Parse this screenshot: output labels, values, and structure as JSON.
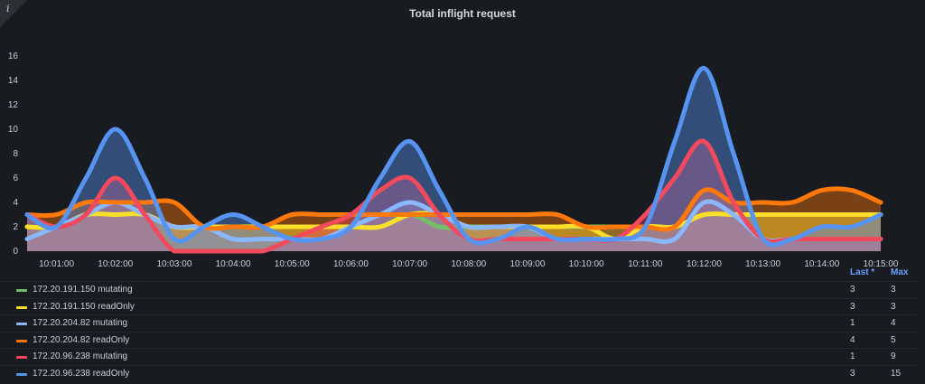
{
  "panel": {
    "title": "Total inflight request",
    "info_icon": "info-icon",
    "info_glyph": "i"
  },
  "legend": {
    "col_last": "Last *",
    "col_max": "Max",
    "rows": [
      {
        "name": "172.20.191.150 mutating",
        "last": "3",
        "max": "3",
        "color": "#73bf69"
      },
      {
        "name": "172.20.191.150 readOnly",
        "last": "3",
        "max": "3",
        "color": "#fade2a"
      },
      {
        "name": "172.20.204.82 mutating",
        "last": "1",
        "max": "4",
        "color": "#8ab8ff"
      },
      {
        "name": "172.20.204.82 readOnly",
        "last": "4",
        "max": "5",
        "color": "#ff780a"
      },
      {
        "name": "172.20.96.238 mutating",
        "last": "1",
        "max": "9",
        "color": "#f2495c"
      },
      {
        "name": "172.20.96.238 readOnly",
        "last": "3",
        "max": "15",
        "color": "#5794f2"
      }
    ]
  },
  "chart_data": {
    "type": "area",
    "title": "Total inflight request",
    "x": [
      "10:00:30",
      "10:01:00",
      "10:01:30",
      "10:02:00",
      "10:02:30",
      "10:03:00",
      "10:03:30",
      "10:04:00",
      "10:04:30",
      "10:05:00",
      "10:05:30",
      "10:06:00",
      "10:06:30",
      "10:07:00",
      "10:07:30",
      "10:08:00",
      "10:08:30",
      "10:09:00",
      "10:09:30",
      "10:10:00",
      "10:10:30",
      "10:11:00",
      "10:11:30",
      "10:12:00",
      "10:12:30",
      "10:13:00",
      "10:13:30",
      "10:14:00",
      "10:14:30",
      "10:15:00"
    ],
    "x_ticks": [
      "10:01:00",
      "10:02:00",
      "10:03:00",
      "10:04:00",
      "10:05:00",
      "10:06:00",
      "10:07:00",
      "10:08:00",
      "10:09:00",
      "10:10:00",
      "10:11:00",
      "10:12:00",
      "10:13:00",
      "10:14:00",
      "10:15:00"
    ],
    "y_ticks": [
      "0",
      "2",
      "4",
      "6",
      "8",
      "10",
      "12",
      "14",
      "16"
    ],
    "ylim": [
      0,
      16
    ],
    "grid": false,
    "legend_position": "bottom",
    "series": [
      {
        "name": "172.20.191.150 mutating",
        "color": "#73bf69",
        "values": [
          2,
          2,
          3,
          3,
          3,
          2,
          2,
          2,
          2,
          2,
          2,
          2,
          2,
          3,
          2,
          2,
          2,
          2,
          2,
          2,
          2,
          2,
          2,
          3,
          3,
          3,
          3,
          3,
          3,
          3
        ]
      },
      {
        "name": "172.20.191.150 readOnly",
        "color": "#fade2a",
        "values": [
          2,
          2,
          3,
          3,
          3,
          2,
          2,
          2,
          2,
          2,
          2,
          2,
          2,
          3,
          3,
          2,
          2,
          2,
          2,
          2,
          1,
          2,
          2,
          3,
          3,
          3,
          3,
          3,
          3,
          3
        ]
      },
      {
        "name": "172.20.204.82 mutating",
        "color": "#8ab8ff",
        "values": [
          1,
          2,
          3,
          4,
          3,
          2,
          2,
          1,
          1,
          1,
          1,
          2,
          3,
          4,
          3,
          2,
          2,
          2,
          1,
          1,
          1,
          1,
          1,
          4,
          3,
          1,
          1,
          1,
          1,
          1
        ]
      },
      {
        "name": "172.20.204.82 readOnly",
        "color": "#ff780a",
        "values": [
          3,
          3,
          4,
          4,
          4,
          4,
          2,
          2,
          2,
          3,
          3,
          3,
          3,
          3,
          3,
          3,
          3,
          3,
          3,
          2,
          2,
          2,
          2,
          5,
          4,
          4,
          4,
          5,
          5,
          4
        ]
      },
      {
        "name": "172.20.96.238 mutating",
        "color": "#f2495c",
        "values": [
          3,
          2,
          3,
          6,
          3,
          0,
          0,
          0,
          0,
          1,
          2,
          3,
          5,
          6,
          3,
          1,
          1,
          1,
          1,
          1,
          1,
          3,
          6,
          9,
          4,
          1,
          1,
          1,
          1,
          1
        ]
      },
      {
        "name": "172.20.96.238 readOnly",
        "color": "#5794f2",
        "values": [
          3,
          2,
          6,
          10,
          6,
          1,
          2,
          3,
          2,
          1,
          1,
          2,
          6,
          9,
          5,
          1,
          1,
          2,
          1,
          1,
          1,
          2,
          9,
          15,
          8,
          1,
          1,
          2,
          2,
          3
        ]
      }
    ]
  }
}
